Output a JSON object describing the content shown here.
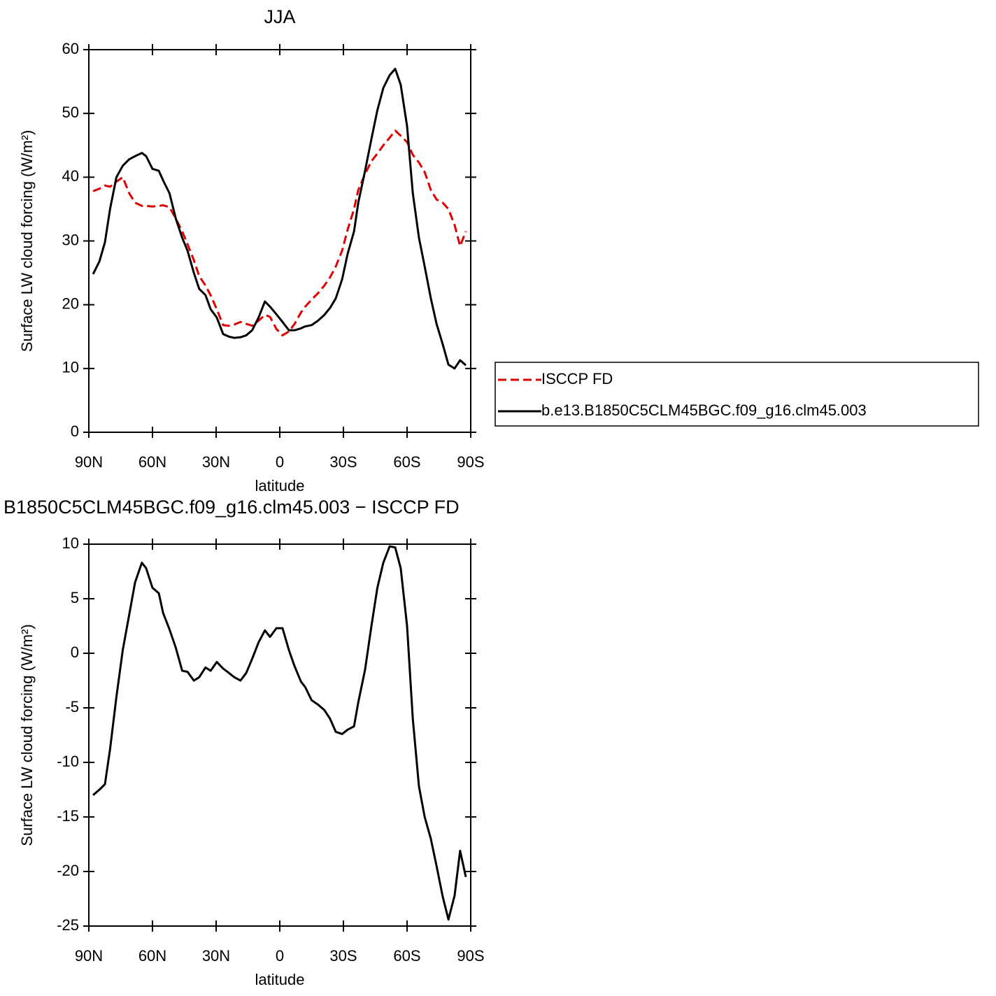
{
  "chart_data": [
    {
      "type": "line",
      "title": "JJA",
      "xlabel": "latitude",
      "ylabel": "Surface LW cloud forcing (W/m²)",
      "x": [
        88,
        85,
        82.4,
        80,
        77,
        74,
        71,
        68.2,
        65,
        63,
        60,
        57,
        55,
        52,
        49,
        46,
        43.5,
        40.5,
        38,
        35,
        32.6,
        29.7,
        26.7,
        24,
        21.4,
        18.5,
        15.8,
        13,
        10,
        7,
        4.6,
        1.6,
        -1.3,
        -4.3,
        -7,
        -10,
        -12,
        -15,
        -18,
        -21,
        -23.7,
        -26.4,
        -29.4,
        -32,
        -35,
        -37,
        -40.2,
        -43.2,
        -46,
        -48.8,
        -51.8,
        -54.4,
        -57,
        -60,
        -62.7,
        -65.6,
        -68.3,
        -71.2,
        -73.9,
        -76.8,
        -79.5,
        -82.4,
        -85,
        -87.7
      ],
      "xlim": [
        90,
        -90
      ],
      "xticks": [
        {
          "value": 90,
          "label": "90N"
        },
        {
          "value": 60,
          "label": "60N"
        },
        {
          "value": 30,
          "label": "30N"
        },
        0,
        {
          "value": -30,
          "label": "30S"
        },
        {
          "value": -60,
          "label": "60S"
        },
        {
          "value": -90,
          "label": "90S"
        }
      ],
      "ylim": [
        0,
        60
      ],
      "yticks": [
        0,
        10,
        20,
        30,
        40,
        50,
        60
      ],
      "legend": "right",
      "series": [
        {
          "name": "ISCCP FD",
          "color": "#e00000",
          "dash": true,
          "values": [
            37.8,
            38.2,
            38.7,
            38.5,
            39.3,
            40,
            37.5,
            36,
            35.5,
            35.5,
            35.4,
            35.5,
            35.6,
            35.3,
            33.5,
            31.5,
            29.5,
            27,
            24.5,
            23,
            21.5,
            19.3,
            16.8,
            16.7,
            16.9,
            17.3,
            17,
            16.7,
            17.5,
            18.4,
            18.1,
            16.2,
            15.2,
            15.8,
            17,
            18.8,
            19.7,
            20.8,
            21.8,
            23,
            24.3,
            26,
            28.5,
            31.8,
            35,
            38,
            40.5,
            42.5,
            43.7,
            45,
            46.2,
            47.3,
            46.5,
            45.5,
            43.5,
            42.3,
            40.8,
            38,
            36.5,
            36,
            35,
            32.5,
            29.2,
            31.5
          ]
        },
        {
          "name": "b.e13.B1850C5CLM45BGC.f09_g16.clm45.003",
          "color": "#000000",
          "dash": false,
          "values": [
            24.8,
            26.8,
            29.8,
            35,
            40,
            41.8,
            42.8,
            43.3,
            43.8,
            43.3,
            41.3,
            41,
            39.5,
            37.5,
            33.5,
            30.5,
            28.5,
            25,
            22.5,
            21.5,
            19.3,
            18,
            15.4,
            15,
            14.8,
            14.9,
            15.2,
            16,
            18,
            20.5,
            19.7,
            18.5,
            17.3,
            16,
            16,
            16.3,
            16.6,
            16.8,
            17.5,
            18.4,
            19.5,
            21,
            24,
            28,
            31.5,
            36,
            41,
            46,
            50.5,
            54,
            56,
            57,
            54.5,
            48,
            37.5,
            30.5,
            26,
            21,
            17,
            13.8,
            10.6,
            10,
            11.3,
            10.5
          ]
        }
      ]
    },
    {
      "type": "line",
      "title": "B1850C5CLM45BGC.f09_g16.clm45.003 − ISCCP FD",
      "xlabel": "latitude",
      "ylabel": "Surface LW cloud forcing (W/m²)",
      "x": [
        88,
        85,
        82.4,
        80,
        77,
        74,
        71,
        68.2,
        65,
        63,
        60,
        57,
        55,
        52,
        49,
        46,
        43.5,
        40.5,
        38,
        35,
        32.6,
        29.7,
        26.7,
        24,
        21.4,
        18.5,
        15.8,
        13,
        10,
        7,
        4.6,
        1.6,
        -1.3,
        -4.3,
        -7,
        -10,
        -12,
        -15,
        -18,
        -21,
        -23.7,
        -26.4,
        -29.4,
        -32,
        -35,
        -37,
        -40.2,
        -43.2,
        -46,
        -48.8,
        -51.8,
        -54.4,
        -57,
        -60,
        -62.7,
        -65.6,
        -68.3,
        -71.2,
        -73.9,
        -76.8,
        -79.5,
        -82.4,
        -85,
        -87.7
      ],
      "xlim": [
        90,
        -90
      ],
      "xticks": [
        {
          "value": 90,
          "label": "90N"
        },
        {
          "value": 60,
          "label": "60N"
        },
        {
          "value": 30,
          "label": "30N"
        },
        0,
        {
          "value": -30,
          "label": "30S"
        },
        {
          "value": -60,
          "label": "60S"
        },
        {
          "value": -90,
          "label": "90S"
        }
      ],
      "ylim": [
        -25,
        10
      ],
      "yticks": [
        -25,
        -20,
        -15,
        -10,
        -5,
        0,
        5,
        10
      ],
      "series": [
        {
          "color": "#000000",
          "dash": false,
          "values": [
            -13,
            -12.5,
            -12,
            -8.8,
            -4,
            0.3,
            3.5,
            6.5,
            8.3,
            7.8,
            6,
            5.5,
            3.7,
            2.2,
            0.5,
            -1.6,
            -1.7,
            -2.5,
            -2.2,
            -1.3,
            -1.6,
            -0.8,
            -1.4,
            -1.8,
            -2.2,
            -2.5,
            -1.8,
            -0.5,
            1,
            2.1,
            1.5,
            2.3,
            2.3,
            0.3,
            -1.2,
            -2.6,
            -3.1,
            -4.3,
            -4.7,
            -5.2,
            -6,
            -7.2,
            -7.4,
            -7,
            -6.7,
            -4.5,
            -1.5,
            2.5,
            6,
            8.3,
            9.8,
            9.7,
            7.8,
            2.5,
            -6,
            -12.2,
            -15,
            -17,
            -19.5,
            -22.3,
            -24.4,
            -22.2,
            -18.1,
            -20.5
          ]
        }
      ]
    }
  ]
}
